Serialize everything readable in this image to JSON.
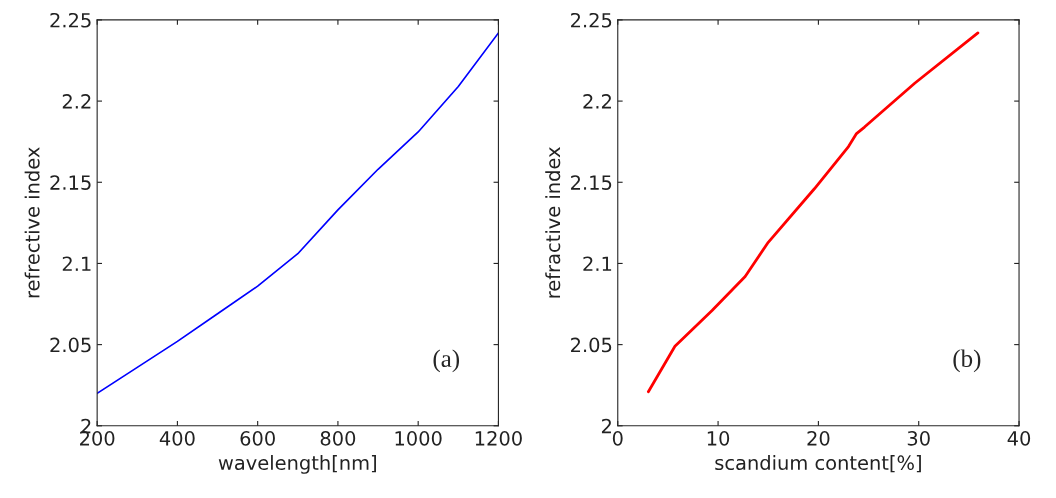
{
  "chart_data": [
    {
      "type": "line",
      "xlabel": "wavelength[nm]",
      "ylabel": "refrective index",
      "annotations": [
        "(a)"
      ],
      "series": [
        {
          "color": "#0000ff",
          "x": [
            200,
            300,
            400,
            500,
            600,
            700,
            800,
            900,
            1000,
            1100,
            1200
          ],
          "values": [
            2.02,
            2.036,
            2.052,
            2.069,
            2.086,
            2.106,
            2.133,
            2.158,
            2.181,
            2.209,
            2.242
          ]
        }
      ],
      "xlim": [
        200,
        1200
      ],
      "xticks": [
        200,
        400,
        600,
        800,
        1000,
        1200
      ],
      "ylim": [
        2,
        2.25
      ],
      "yticks": [
        2,
        2.05,
        2.1,
        2.15,
        2.2,
        2.25
      ],
      "grid": false
    },
    {
      "type": "line",
      "xlabel": "scandium content[%]",
      "ylabel": "refractive index",
      "annotations": [
        "(b)"
      ],
      "series": [
        {
          "color": "#ff0000",
          "x": [
            3.05,
            5.7,
            9.4,
            12.7,
            15,
            19.6,
            23,
            23.8,
            24.6,
            29.6,
            35.9
          ],
          "values": [
            2.021,
            2.049,
            2.071,
            2.092,
            2.113,
            2.146,
            2.172,
            2.18,
            2.184,
            2.211,
            2.242
          ]
        }
      ],
      "xlim": [
        0,
        40
      ],
      "xticks": [
        0,
        10,
        20,
        30,
        40
      ],
      "ylim": [
        2,
        2.25
      ],
      "yticks": [
        2,
        2.05,
        2.1,
        2.15,
        2.2,
        2.25
      ],
      "grid": false
    }
  ]
}
